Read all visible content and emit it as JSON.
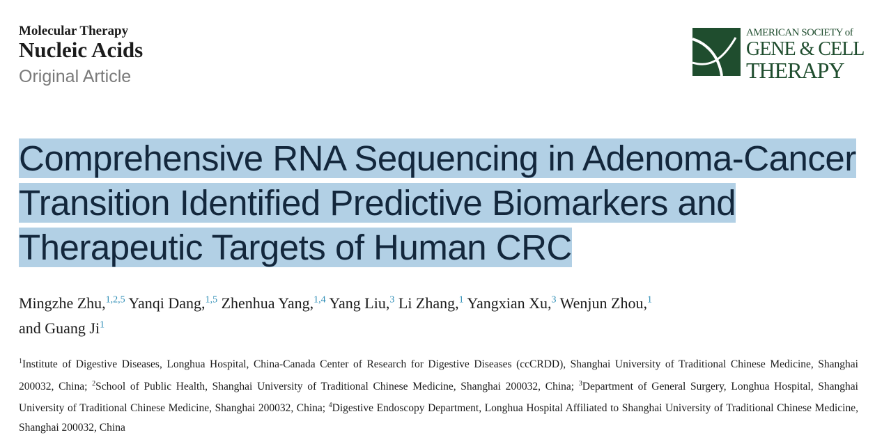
{
  "journal": {
    "line1": "Molecular Therapy",
    "line2": "Nucleic Acids",
    "article_type": "Original Article"
  },
  "logo": {
    "line1": "AMERICAN SOCIETY of",
    "line2": "GENE & CELL",
    "line3": "THERAPY",
    "color": "#1f4d2e"
  },
  "title": "Comprehensive RNA Sequencing in Adenoma-Cancer Transition Identified Predictive Biomarkers and Therapeutic Targets of Human CRC",
  "highlight_color": "#b2d0e5",
  "authors": [
    {
      "name": "Mingzhe Zhu,",
      "sup": "1,2,5"
    },
    {
      "name": "Yanqi Dang,",
      "sup": "1,5"
    },
    {
      "name": "Zhenhua Yang,",
      "sup": "1,4"
    },
    {
      "name": "Yang Liu,",
      "sup": "3"
    },
    {
      "name": "Li Zhang,",
      "sup": "1"
    },
    {
      "name": "Yangxian Xu,",
      "sup": "3"
    },
    {
      "name": "Wenjun Zhou,",
      "sup": "1"
    },
    {
      "name": "and Guang Ji",
      "sup": "1"
    }
  ],
  "affiliations": [
    {
      "sup": "1",
      "text": "Institute of Digestive Diseases, Longhua Hospital, China-Canada Center of Research for Digestive Diseases (ccCRDD), Shanghai University of Traditional Chinese Medicine, Shanghai 200032, China; "
    },
    {
      "sup": "2",
      "text": "School of Public Health, Shanghai University of Traditional Chinese Medicine, Shanghai 200032, China; "
    },
    {
      "sup": "3",
      "text": "Department of General Surgery, Longhua Hospital, Shanghai University of Traditional Chinese Medicine, Shanghai 200032, China; "
    },
    {
      "sup": "4",
      "text": "Digestive Endoscopy Department, Longhua Hospital Affiliated to Shanghai University of Traditional Chinese Medicine, Shanghai 200032, China"
    }
  ]
}
